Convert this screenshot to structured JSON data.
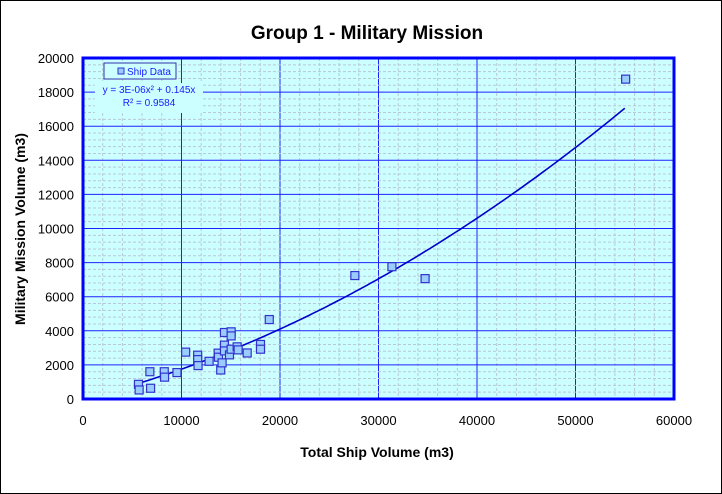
{
  "chart_data": {
    "type": "scatter",
    "title": "Group 1 - Military Mission",
    "xlabel": "Total Ship Volume (m3)",
    "ylabel": "Military Mission Volume (m3)",
    "xlim": [
      0,
      60000
    ],
    "ylim": [
      0,
      20000
    ],
    "xticks": [
      "0",
      "10000",
      "20000",
      "30000",
      "40000",
      "50000",
      "60000"
    ],
    "yticks": [
      "0",
      "2000",
      "4000",
      "6000",
      "8000",
      "10000",
      "12000",
      "14000",
      "16000",
      "18000",
      "20000"
    ],
    "grid": true,
    "legend_position": "top-left",
    "colors": {
      "plot_bg": "#ccffff",
      "grid": "#2020ff",
      "marker_fill": "#99ccff",
      "marker_edge": "#3333cc",
      "trend": "#0000cc"
    },
    "series": [
      {
        "name": "Ship Data",
        "points": [
          [
            5630,
            860
          ],
          [
            5700,
            530
          ],
          [
            6860,
            630
          ],
          [
            6790,
            1600
          ],
          [
            8250,
            1600
          ],
          [
            8280,
            1280
          ],
          [
            9540,
            1550
          ],
          [
            10420,
            2750
          ],
          [
            11640,
            2570
          ],
          [
            11640,
            2310
          ],
          [
            11680,
            1960
          ],
          [
            12800,
            2210
          ],
          [
            13720,
            2690
          ],
          [
            13750,
            2450
          ],
          [
            13980,
            1700
          ],
          [
            14120,
            2120
          ],
          [
            14360,
            3900
          ],
          [
            14360,
            3160
          ],
          [
            14360,
            2820
          ],
          [
            15040,
            3940
          ],
          [
            15040,
            3700
          ],
          [
            14870,
            2590
          ],
          [
            15040,
            2920
          ],
          [
            15650,
            3060
          ],
          [
            15750,
            2880
          ],
          [
            16670,
            2700
          ],
          [
            18020,
            3200
          ],
          [
            18020,
            2920
          ],
          [
            18910,
            4660
          ],
          [
            27600,
            7240
          ],
          [
            31360,
            7760
          ],
          [
            34730,
            7060
          ],
          [
            55090,
            18760
          ]
        ]
      }
    ],
    "trendline": {
      "type": "polynomial",
      "equation": "y = 3E-06x² + 0.145x",
      "r_squared": "R² = 0.9584",
      "a": 3e-06,
      "b": 0.145,
      "x_range": [
        5600,
        55000
      ]
    }
  }
}
